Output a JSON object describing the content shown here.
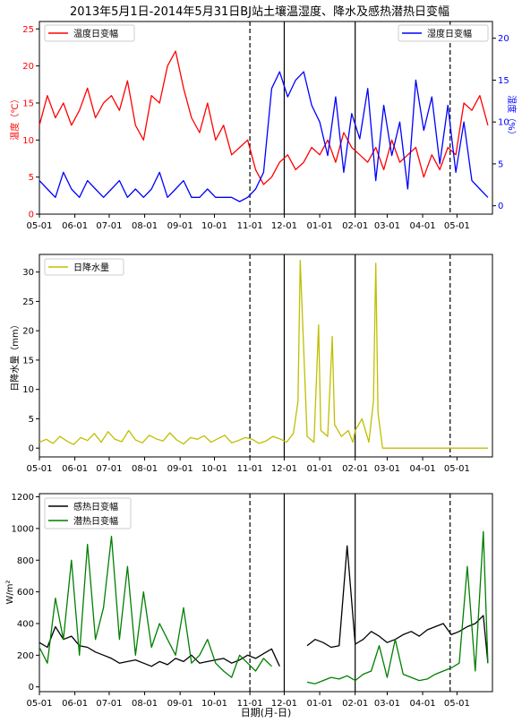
{
  "figure_title": "2013年5月1日-2014年5月31日BJ站土壤温湿度、降水及感热潜热日变幅",
  "xlabel": "日期(月-日)",
  "chart_data": [
    {
      "type": "line",
      "panel": "top",
      "x_ticks": [
        "05-01",
        "06-01",
        "07-01",
        "08-01",
        "09-01",
        "10-01",
        "11-01",
        "12-01",
        "01-01",
        "02-01",
        "03-01",
        "04-01",
        "05-01"
      ],
      "ylabel_left": "温度（℃）",
      "ylabel_right": "湿度（%）",
      "ylim_left": [
        0,
        26
      ],
      "yticks_left": [
        0,
        5,
        10,
        15,
        20,
        25
      ],
      "ylim_right": [
        -1,
        22
      ],
      "yticks_right": [
        0,
        5,
        10,
        15,
        20
      ],
      "vlines": [
        {
          "x_day": 184,
          "style": "dashed"
        },
        {
          "x_day": 214,
          "style": "solid"
        },
        {
          "x_day": 276,
          "style": "solid"
        },
        {
          "x_day": 359,
          "style": "dashed"
        }
      ],
      "series": [
        {
          "name": "温度日变幅",
          "axis": "left",
          "color": "#ff0000",
          "x_days": [
            0,
            7,
            14,
            21,
            28,
            35,
            42,
            49,
            56,
            63,
            70,
            77,
            84,
            91,
            98,
            105,
            112,
            119,
            126,
            133,
            140,
            147,
            154,
            161,
            168,
            175,
            182,
            189,
            196,
            203,
            210,
            217,
            224,
            231,
            238,
            245,
            252,
            259,
            266,
            273,
            280,
            287,
            294,
            301,
            308,
            315,
            322,
            329,
            336,
            343,
            350,
            357,
            364,
            371,
            378,
            385,
            392
          ],
          "values": [
            12,
            16,
            13,
            15,
            12,
            14,
            17,
            13,
            15,
            16,
            14,
            18,
            12,
            10,
            16,
            15,
            20,
            22,
            17,
            13,
            11,
            15,
            10,
            12,
            8,
            9,
            10,
            6,
            4,
            5,
            7,
            8,
            6,
            7,
            9,
            8,
            10,
            7,
            11,
            9,
            8,
            7,
            9,
            6,
            10,
            7,
            8,
            9,
            5,
            8,
            6,
            9,
            8,
            15,
            14,
            16,
            12
          ]
        },
        {
          "name": "湿度日变幅",
          "axis": "right",
          "color": "#0000ff",
          "x_days": [
            0,
            7,
            14,
            21,
            28,
            35,
            42,
            49,
            56,
            63,
            70,
            77,
            84,
            91,
            98,
            105,
            112,
            119,
            126,
            133,
            140,
            147,
            154,
            161,
            168,
            175,
            182,
            189,
            196,
            203,
            210,
            217,
            224,
            231,
            238,
            245,
            252,
            259,
            266,
            273,
            280,
            287,
            294,
            301,
            308,
            315,
            322,
            329,
            336,
            343,
            350,
            357,
            364,
            371,
            378,
            385,
            392
          ],
          "values": [
            3,
            2,
            1,
            4,
            2,
            1,
            3,
            2,
            1,
            2,
            3,
            1,
            2,
            1,
            2,
            4,
            1,
            2,
            3,
            1,
            1,
            2,
            1,
            1,
            1,
            0.5,
            1,
            2,
            4,
            14,
            16,
            13,
            15,
            16,
            12,
            10,
            6,
            13,
            4,
            11,
            8,
            14,
            3,
            12,
            6,
            10,
            2,
            15,
            9,
            13,
            5,
            12,
            4,
            10,
            3,
            2,
            1
          ]
        }
      ]
    },
    {
      "type": "line",
      "panel": "middle",
      "x_ticks": [
        "05-01",
        "06-01",
        "07-01",
        "08-01",
        "09-01",
        "10-01",
        "11-01",
        "12-01",
        "01-01",
        "02-01",
        "03-01",
        "04-01",
        "05-01"
      ],
      "ylabel": "日降水量（mm）",
      "ylim": [
        -1.5,
        33
      ],
      "yticks": [
        0,
        5,
        10,
        15,
        20,
        25,
        30
      ],
      "vlines": [
        {
          "x_day": 184,
          "style": "dashed"
        },
        {
          "x_day": 214,
          "style": "solid"
        },
        {
          "x_day": 276,
          "style": "solid"
        },
        {
          "x_day": 359,
          "style": "dashed"
        }
      ],
      "series": [
        {
          "name": "日降水量",
          "color": "#bfbf00",
          "x_days": [
            0,
            6,
            12,
            18,
            24,
            30,
            36,
            42,
            48,
            54,
            60,
            66,
            72,
            78,
            84,
            90,
            96,
            102,
            108,
            114,
            120,
            126,
            132,
            138,
            144,
            150,
            156,
            162,
            168,
            174,
            180,
            186,
            192,
            198,
            204,
            210,
            216,
            222,
            226,
            228,
            234,
            240,
            244,
            246,
            252,
            256,
            258,
            264,
            270,
            274,
            276,
            282,
            288,
            292,
            294,
            296,
            300,
            330,
            360,
            392
          ],
          "values": [
            1,
            1.5,
            0.8,
            2,
            1.2,
            0.6,
            1.8,
            1.3,
            2.5,
            1,
            2.8,
            1.5,
            1.1,
            3,
            1.4,
            0.9,
            2.2,
            1.6,
            1.2,
            2.6,
            1.4,
            0.7,
            1.8,
            1.5,
            2.1,
            1,
            1.6,
            2.2,
            0.9,
            1.3,
            1.8,
            1.5,
            0.8,
            1.2,
            2,
            1.6,
            1,
            2.5,
            8,
            32,
            2,
            1,
            21,
            3,
            2,
            19,
            4,
            2,
            3,
            1,
            3,
            5,
            1,
            8,
            31.5,
            6,
            0,
            0,
            0,
            0
          ]
        }
      ]
    },
    {
      "type": "line",
      "panel": "bottom",
      "x_ticks": [
        "05-01",
        "06-01",
        "07-01",
        "08-01",
        "09-01",
        "10-01",
        "11-01",
        "12-01",
        "01-01",
        "02-01",
        "03-01",
        "04-01",
        "05-01"
      ],
      "ylabel": "W/m²",
      "ylim": [
        -30,
        1220
      ],
      "yticks": [
        0,
        200,
        400,
        600,
        800,
        1000,
        1200
      ],
      "vlines": [
        {
          "x_day": 184,
          "style": "dashed"
        },
        {
          "x_day": 214,
          "style": "solid"
        },
        {
          "x_day": 276,
          "style": "solid"
        },
        {
          "x_day": 359,
          "style": "dashed"
        }
      ],
      "series": [
        {
          "name": "感热日变幅",
          "color": "#000000",
          "segments": [
            {
              "x_days": [
                0,
                7,
                14,
                21,
                28,
                35,
                42,
                49,
                56,
                63,
                70,
                77,
                84,
                91,
                98,
                105,
                112,
                119,
                126,
                133,
                140,
                147,
                154,
                161,
                168,
                175,
                182,
                189,
                196,
                203,
                210
              ],
              "values": [
                280,
                250,
                380,
                300,
                320,
                260,
                250,
                220,
                200,
                180,
                150,
                160,
                170,
                150,
                130,
                160,
                140,
                180,
                160,
                200,
                150,
                160,
                170,
                180,
                150,
                170,
                200,
                180,
                210,
                240,
                130
              ]
            },
            {
              "x_days": [
                234,
                241,
                248,
                255,
                262,
                269,
                276,
                283,
                290,
                297,
                304,
                311,
                318,
                325,
                332,
                339,
                346,
                353,
                360,
                367,
                374,
                381,
                388,
                392
              ],
              "values": [
                260,
                300,
                280,
                250,
                260,
                890,
                270,
                300,
                350,
                320,
                280,
                300,
                330,
                350,
                320,
                360,
                380,
                400,
                330,
                350,
                380,
                400,
                450,
                150
              ]
            }
          ]
        },
        {
          "name": "潜热日变幅",
          "color": "#007f00",
          "segments": [
            {
              "x_days": [
                0,
                7,
                14,
                21,
                28,
                35,
                42,
                49,
                56,
                63,
                70,
                77,
                84,
                91,
                98,
                105,
                112,
                119,
                126,
                133,
                140,
                147,
                154,
                161,
                168,
                175,
                182,
                189,
                196,
                203
              ],
              "values": [
                250,
                150,
                560,
                300,
                800,
                200,
                900,
                300,
                500,
                950,
                300,
                760,
                200,
                600,
                250,
                400,
                300,
                200,
                500,
                150,
                200,
                300,
                150,
                100,
                60,
                200,
                150,
                100,
                180,
                130
              ]
            },
            {
              "x_days": [
                234,
                241,
                248,
                255,
                262,
                269,
                276,
                283,
                290,
                297,
                304,
                311,
                318,
                325,
                332,
                339,
                346,
                353,
                360,
                367,
                374,
                381,
                388,
                392
              ],
              "values": [
                30,
                20,
                40,
                60,
                50,
                70,
                40,
                80,
                100,
                260,
                60,
                300,
                80,
                60,
                40,
                50,
                80,
                100,
                120,
                150,
                760,
                100,
                980,
                150
              ]
            }
          ]
        }
      ]
    }
  ],
  "legends": {
    "top_left": "温度日变幅",
    "top_right": "湿度日变幅",
    "middle": "日降水量",
    "bottom": [
      "感热日变幅",
      "潜热日变幅"
    ]
  },
  "colors": {
    "temp": "#ff0000",
    "humidity": "#0000ff",
    "precip": "#bfbf00",
    "sensible": "#000000",
    "latent": "#007f00"
  }
}
